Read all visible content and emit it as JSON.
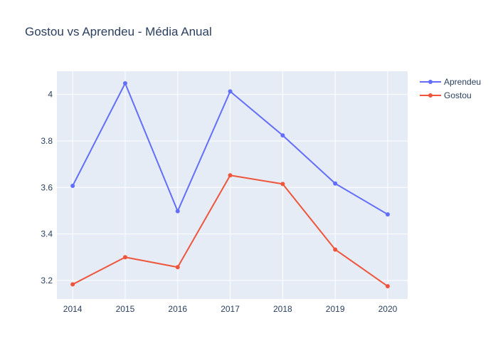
{
  "chart_data": {
    "type": "line",
    "title": "Gostou vs Aprendeu  - Média Anual",
    "xlabel": "",
    "ylabel": "",
    "x": [
      2014,
      2015,
      2016,
      2017,
      2018,
      2019,
      2020
    ],
    "x_tick_labels": [
      "2014",
      "2015",
      "2016",
      "2017",
      "2018",
      "2019",
      "2020"
    ],
    "y_ticks": [
      3.2,
      3.4,
      3.6,
      3.8,
      4
    ],
    "y_tick_labels": [
      "3.2",
      "3.4",
      "3.6",
      "3.8",
      "4"
    ],
    "xlim": [
      2013.7,
      2020.38
    ],
    "ylim": [
      3.12,
      4.1
    ],
    "grid": true,
    "legend_position": "top-right",
    "series": [
      {
        "name": "Aprendeu",
        "color": "#636efa",
        "values": [
          3.607,
          4.048,
          3.498,
          4.013,
          3.824,
          3.617,
          3.484
        ]
      },
      {
        "name": "Gostou",
        "color": "#ef553b",
        "values": [
          3.183,
          3.3,
          3.257,
          3.652,
          3.615,
          3.333,
          3.175
        ]
      }
    ]
  }
}
